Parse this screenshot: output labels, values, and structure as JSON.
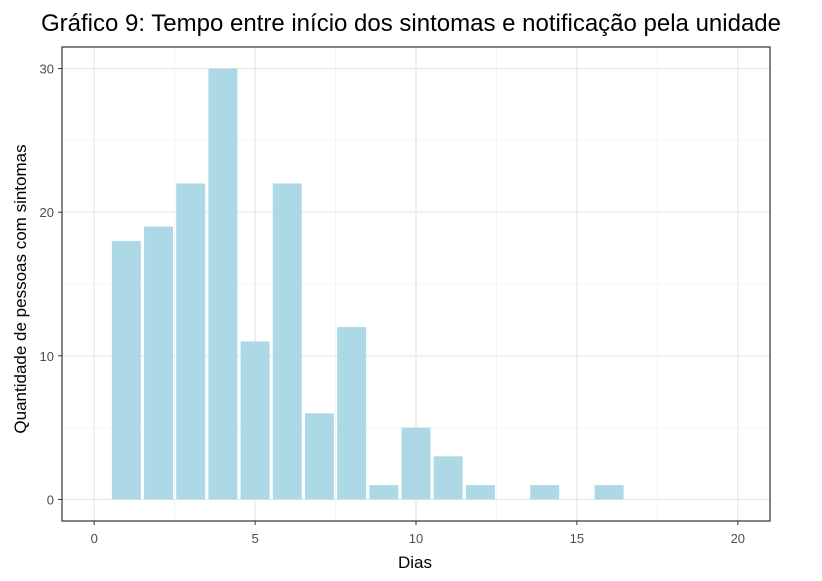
{
  "chart_data": {
    "type": "bar",
    "title": "Gráfico 9: Tempo entre início dos sintomas e notificação pela unidade",
    "xlabel": "Dias",
    "ylabel": "Quantidade de pessoas com sintomas",
    "x": [
      1,
      2,
      3,
      4,
      5,
      6,
      7,
      8,
      9,
      10,
      11,
      12,
      14,
      16
    ],
    "values": [
      18,
      19,
      22,
      30,
      11,
      22,
      6,
      12,
      1,
      5,
      3,
      1,
      1,
      1
    ],
    "xlim": [
      -1,
      21
    ],
    "ylim": [
      -1.5,
      31.5
    ],
    "xticks": [
      0,
      5,
      10,
      15,
      20
    ],
    "yticks": [
      0,
      10,
      20,
      30
    ],
    "xtick_labels": [
      "0",
      "5",
      "10",
      "15",
      "20"
    ],
    "ytick_labels": [
      "0",
      "10",
      "20",
      "30"
    ],
    "grid": true,
    "bar_color": "#add8e6",
    "legend": "none"
  }
}
